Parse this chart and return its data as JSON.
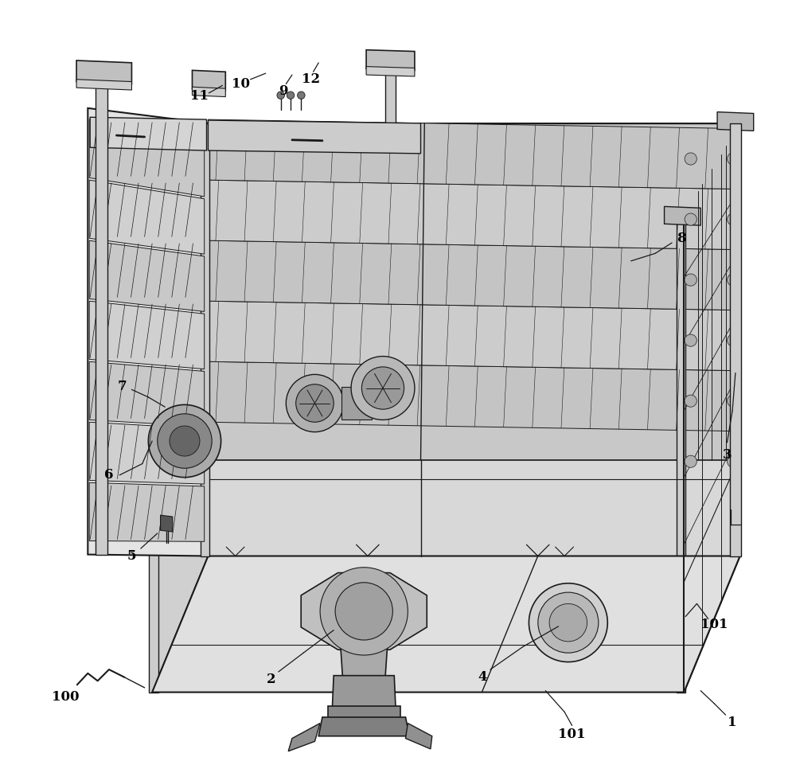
{
  "bg_color": "#ffffff",
  "line_color": "#1a1a1a",
  "figsize": [
    10.0,
    9.56
  ],
  "top_face_color": "#e8e8e8",
  "left_face_color": "#d8d8d8",
  "right_face_color": "#c0c0c0",
  "front_face_color": "#d0d0d0",
  "tray_light": "#d4d4d4",
  "tray_dark": "#b8b8b8",
  "motor_color": "#c8c8c8",
  "dark_gray": "#888888"
}
